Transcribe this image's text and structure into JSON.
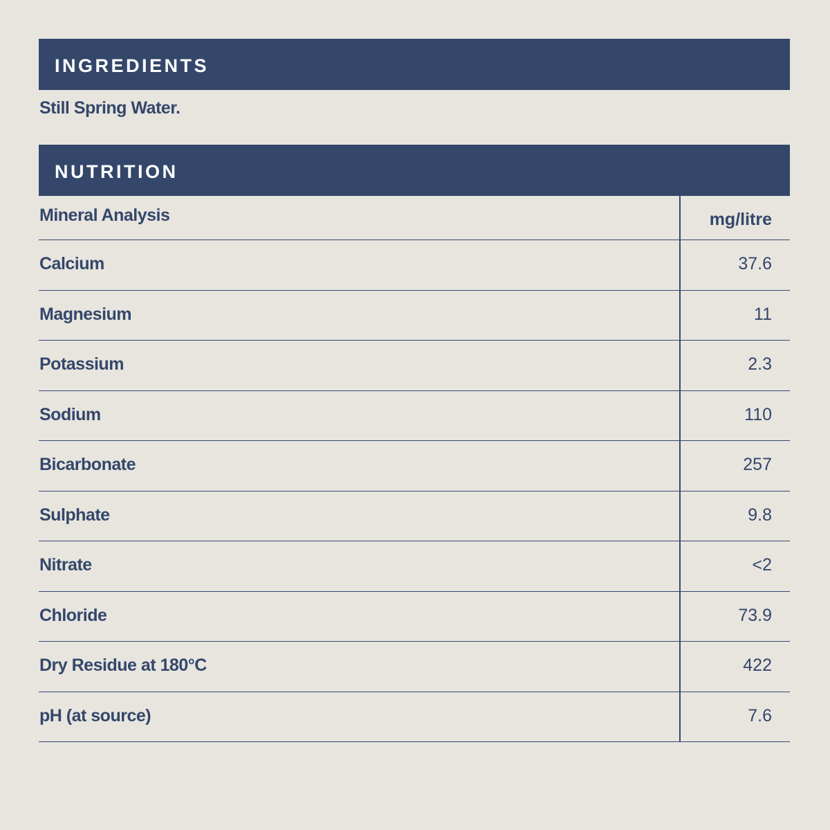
{
  "ingredients": {
    "title": "INGREDIENTS",
    "text": "Still Spring Water."
  },
  "nutrition": {
    "title": "NUTRITION",
    "table": {
      "header": [
        "Mineral Analysis",
        "mg/litre"
      ],
      "rows": [
        [
          "Calcium",
          "37.6"
        ],
        [
          "Magnesium",
          "11"
        ],
        [
          "Potassium",
          "2.3"
        ],
        [
          "Sodium",
          "110"
        ],
        [
          "Bicarbonate",
          "257"
        ],
        [
          "Sulphate",
          "9.8"
        ],
        [
          "Nitrate",
          "<2"
        ],
        [
          "Chloride",
          "73.9"
        ],
        [
          "Dry Residue at 180°C",
          "422"
        ],
        [
          "pH (at source)",
          "7.6"
        ]
      ]
    }
  }
}
